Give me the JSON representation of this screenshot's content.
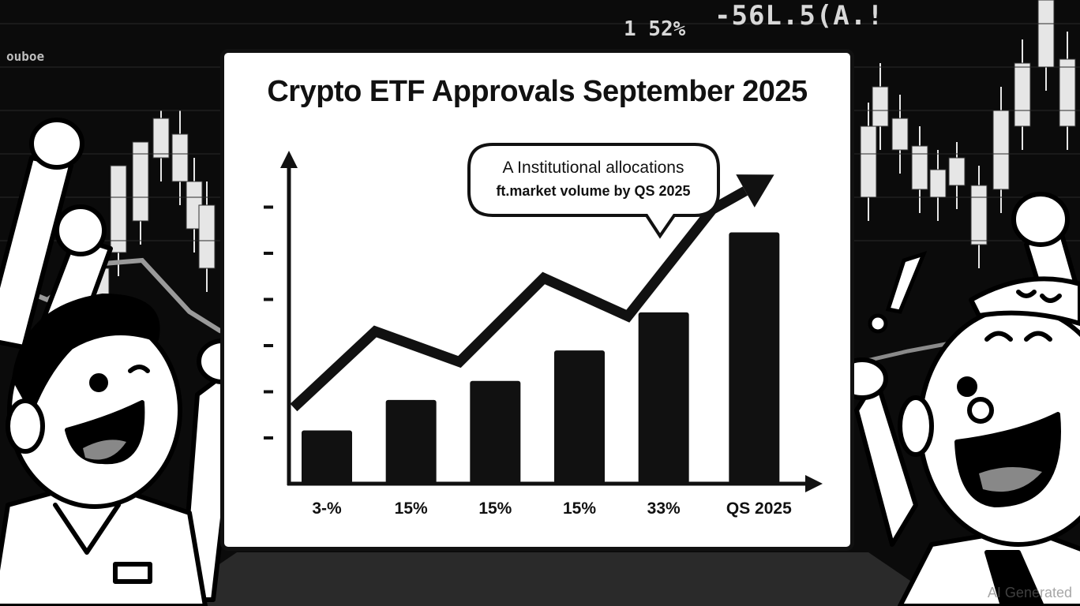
{
  "backdrop": {
    "ticker_values": [
      "1 52%",
      "-56L.5(A.!",
      "ouboe"
    ],
    "palette": {
      "screen": "#0b0b0b",
      "candle": "#e6e6e6",
      "ink": "#111111",
      "paper": "#ffffff"
    }
  },
  "chart_data": {
    "type": "bar",
    "title": "Crypto ETF Approvals September 2025",
    "categories": [
      "3-%",
      "15%",
      "15%",
      "15%",
      "33%",
      "QS 2025"
    ],
    "values": [
      7,
      11,
      13.5,
      17.5,
      22.5,
      33
    ],
    "trend_values": [
      10,
      20,
      16,
      27,
      22,
      36
    ],
    "ylim": [
      0,
      40
    ],
    "yticks": 6,
    "grid": false,
    "legend": "none",
    "annotation": {
      "line1": "A Institutional allocations",
      "line2": "ft.market volume by QS 2025"
    }
  },
  "watermark": "AI Generated",
  "icons": [
    "cheering-man-left-icon",
    "cheering-man-right-icon",
    "exclamation-icon"
  ]
}
